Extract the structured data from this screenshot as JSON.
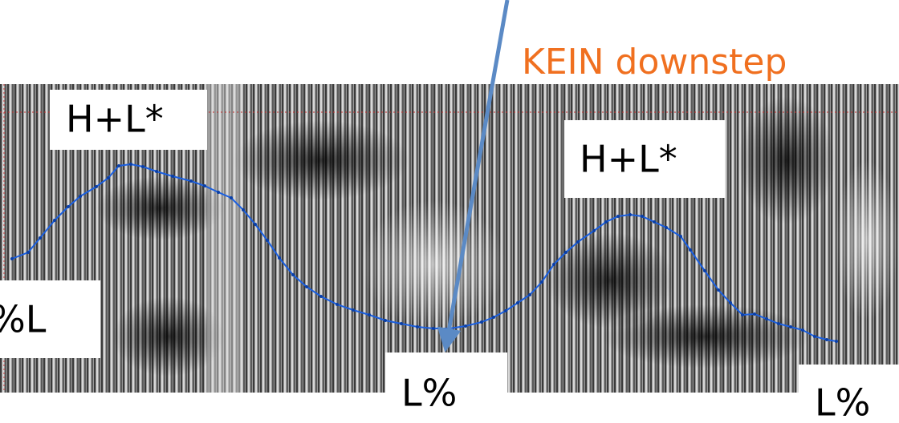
{
  "annotation": "KEIN downstep",
  "labels": [
    "H+L*",
    "H+L*",
    "%L",
    "L%",
    "L%"
  ]
}
